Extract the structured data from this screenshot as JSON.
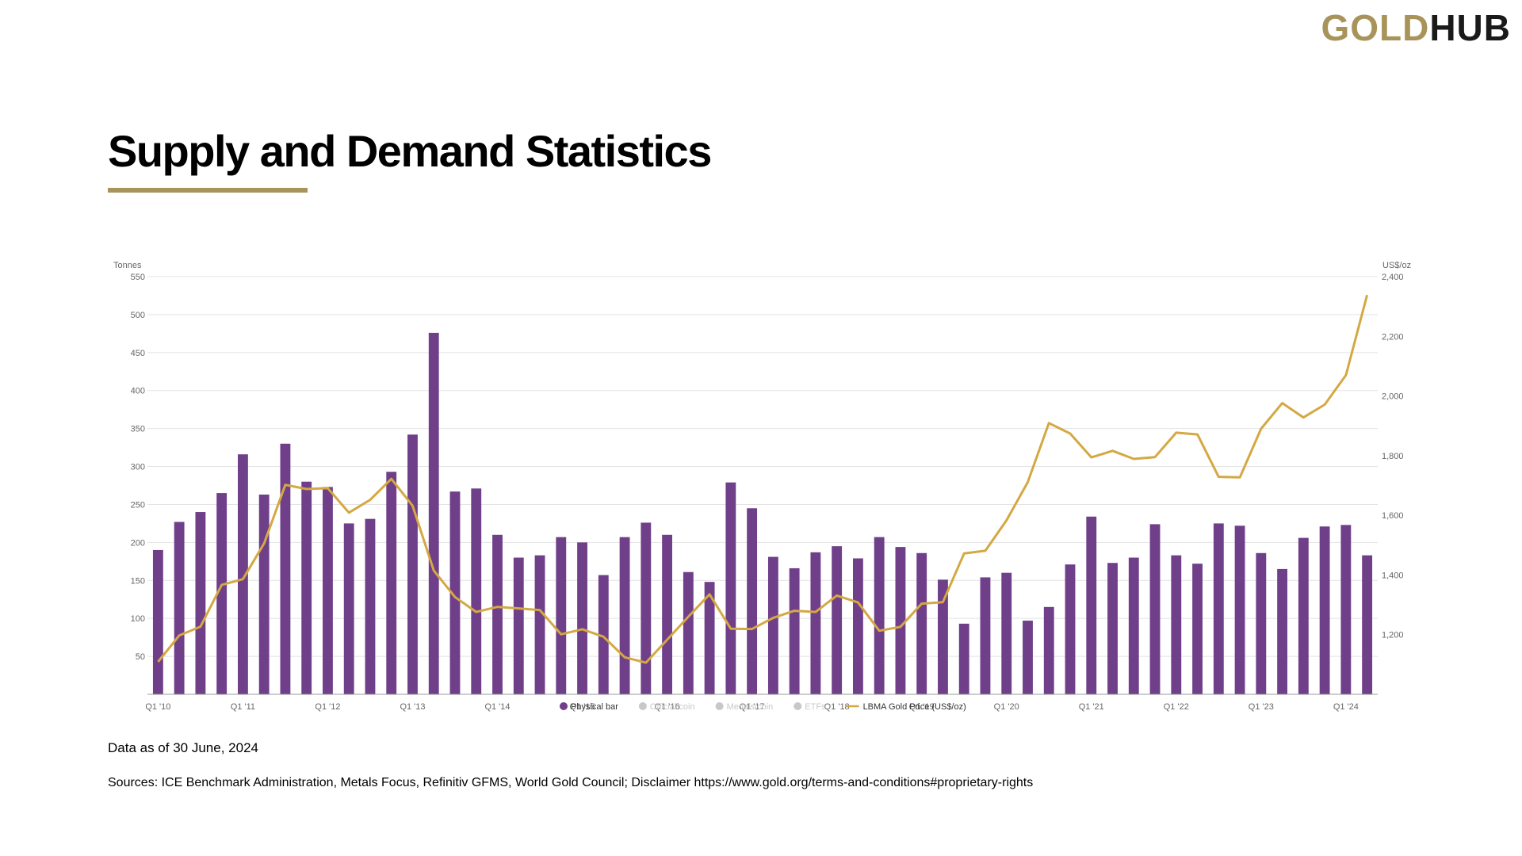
{
  "logo": {
    "part1": "GOLD",
    "part2": "HUB"
  },
  "page": {
    "title": "Supply and Demand Statistics",
    "data_note": "Data as of 30 June, 2024",
    "sources": "Sources: ICE Benchmark Administration, Metals Focus, Refinitiv GFMS, World Gold Council; Disclaimer https://www.gold.org/terms-and-conditions#proprietary-rights"
  },
  "colors": {
    "bar": "#6f3f8a",
    "line": "#d4a843",
    "accent": "#a8945a",
    "grid": "#e3e3e3"
  },
  "chart_data": {
    "type": "bar",
    "ylabel": "Tonnes",
    "y2label": "US$/oz",
    "ylim": [
      0,
      550
    ],
    "y2lim": [
      1000,
      2400
    ],
    "yticks": [
      "50",
      "100",
      "150",
      "200",
      "250",
      "300",
      "350",
      "400",
      "450",
      "500",
      "550"
    ],
    "y2ticks": [
      "1,200",
      "1,400",
      "1,600",
      "1,800",
      "2,000",
      "2,200",
      "2,400"
    ],
    "x_ticklabels": [
      {
        "label": "Q1 '10",
        "index": 0
      },
      {
        "label": "Q1 '11",
        "index": 4
      },
      {
        "label": "Q1 '12",
        "index": 8
      },
      {
        "label": "Q1 '13",
        "index": 12
      },
      {
        "label": "Q1 '14",
        "index": 16
      },
      {
        "label": "Q1 '15",
        "index": 20
      },
      {
        "label": "Q1 '16",
        "index": 24
      },
      {
        "label": "Q1 '17",
        "index": 28
      },
      {
        "label": "Q1 '18",
        "index": 32
      },
      {
        "label": "Q1 '19",
        "index": 36
      },
      {
        "label": "Q1 '20",
        "index": 40
      },
      {
        "label": "Q1 '21",
        "index": 44
      },
      {
        "label": "Q1 '22",
        "index": 48
      },
      {
        "label": "Q1 '23",
        "index": 52
      },
      {
        "label": "Q1 '24",
        "index": 56
      }
    ],
    "grid": true,
    "legend_position": "bottom-center",
    "legend": [
      {
        "label": "Physical bar",
        "active": true,
        "marker": "dot",
        "color": "#6f3f8a"
      },
      {
        "label": "Official coin",
        "active": false,
        "marker": "dot",
        "color": "#c8c8c8"
      },
      {
        "label": "Medals/coin",
        "active": false,
        "marker": "dot",
        "color": "#c8c8c8"
      },
      {
        "label": "ETFs",
        "active": false,
        "marker": "dot",
        "color": "#c8c8c8"
      },
      {
        "label": "LBMA Gold Price (US$/oz)",
        "active": true,
        "marker": "line",
        "color": "#d4a843"
      }
    ],
    "series": [
      {
        "name": "Physical bar",
        "axis": "left",
        "values": [
          190,
          227,
          240,
          265,
          316,
          263,
          330,
          280,
          273,
          225,
          231,
          293,
          342,
          476,
          267,
          271,
          210,
          180,
          183,
          207,
          200,
          157,
          207,
          226,
          210,
          161,
          148,
          279,
          245,
          181,
          166,
          187,
          195,
          179,
          207,
          194,
          186,
          151,
          93,
          154,
          160,
          97,
          115,
          171,
          234,
          173,
          180,
          224,
          183,
          172,
          225,
          222,
          186,
          165,
          206,
          221,
          223,
          183
        ]
      },
      {
        "name": "LBMA Gold Price (US$/oz)",
        "axis": "right",
        "values": [
          1109,
          1197,
          1227,
          1367,
          1386,
          1506,
          1702,
          1688,
          1691,
          1609,
          1652,
          1722,
          1632,
          1415,
          1326,
          1276,
          1293,
          1288,
          1282,
          1201,
          1218,
          1193,
          1124,
          1106,
          1183,
          1260,
          1335,
          1220,
          1219,
          1256,
          1280,
          1276,
          1331,
          1308,
          1213,
          1226,
          1304,
          1309,
          1472,
          1481,
          1583,
          1711,
          1909,
          1874,
          1794,
          1816,
          1789,
          1795,
          1877,
          1871,
          1729,
          1727,
          1890,
          1976,
          1928,
          1971,
          2070,
          2338
        ]
      }
    ]
  }
}
